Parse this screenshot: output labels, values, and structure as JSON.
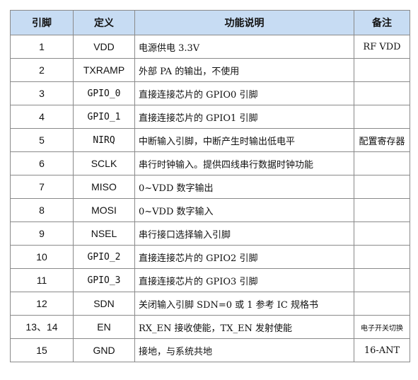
{
  "headers": {
    "pin": "引脚",
    "def": "定义",
    "desc": "功能说明",
    "note": "备注"
  },
  "rows": [
    {
      "pin": "1",
      "def": "VDD",
      "desc": "电源供电 3.3V",
      "note": "RF VDD"
    },
    {
      "pin": "2",
      "def": "TXRAMP",
      "desc": "外部 PA 的输出，不使用",
      "note": ""
    },
    {
      "pin": "3",
      "def": "GPIO_0",
      "desc": "直接连接芯片的 GPIO0 引脚",
      "note": ""
    },
    {
      "pin": "4",
      "def": "GPIO_1",
      "desc": "直接连接芯片的 GPIO1 引脚",
      "note": ""
    },
    {
      "pin": "5",
      "def": "NIRQ",
      "desc": "中断输入引脚，中断产生时输出低电平",
      "note": "配置寄存器"
    },
    {
      "pin": "6",
      "def": "SCLK",
      "desc": "串行时钟输入。提供四线串行数据时钟功能",
      "note": ""
    },
    {
      "pin": "7",
      "def": "MISO",
      "desc": "0~VDD 数字输出",
      "note": ""
    },
    {
      "pin": "8",
      "def": "MOSI",
      "desc": "0~VDD 数字输入",
      "note": ""
    },
    {
      "pin": "9",
      "def": "NSEL",
      "desc": "串行接口选择输入引脚",
      "note": ""
    },
    {
      "pin": "10",
      "def": "GPIO_2",
      "desc": "直接连接芯片的 GPIO2 引脚",
      "note": ""
    },
    {
      "pin": "11",
      "def": "GPIO_3",
      "desc": "直接连接芯片的 GPIO3 引脚",
      "note": ""
    },
    {
      "pin": "12",
      "def": "SDN",
      "desc": "关闭输入引脚 SDN=0 或 1 参考 IC 规格书",
      "note": ""
    },
    {
      "pin": "13、14",
      "def": "EN",
      "desc": "RX_EN 接收使能，TX_EN 发射使能",
      "note": "电子开关切换"
    },
    {
      "pin": "15",
      "def": "GND",
      "desc": "接地，与系统共地",
      "note": "16-ANT"
    }
  ],
  "colors": {
    "header_bg": "#c7dcf3",
    "border": "#8a8a8a"
  }
}
